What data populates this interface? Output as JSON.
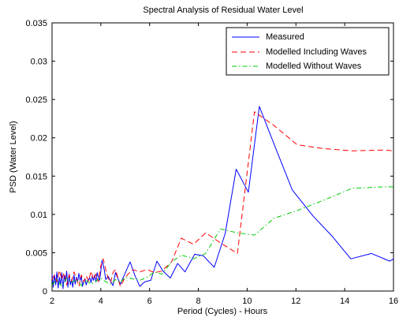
{
  "chart_data": {
    "type": "line",
    "title": "Spectral Analysis of Residual Water Level",
    "xlabel": "Period (Cycles) - Hours",
    "ylabel": "PSD (Water Level)",
    "xlim": [
      2,
      16
    ],
    "ylim": [
      0,
      0.035
    ],
    "xticks": [
      2,
      4,
      6,
      8,
      10,
      12,
      14,
      16
    ],
    "yticks": [
      0,
      0.005,
      0.01,
      0.015,
      0.02,
      0.025,
      0.03,
      0.035
    ],
    "xtick_labels": [
      "2",
      "4",
      "6",
      "8",
      "10",
      "12",
      "14",
      "16"
    ],
    "ytick_labels": [
      "0",
      "0.005",
      "0.01",
      "0.015",
      "0.02",
      "0.025",
      "0.03",
      "0.035"
    ],
    "grid": false,
    "legend_position": "top-right",
    "series": [
      {
        "name": "Measured",
        "color": "#0000ff",
        "dash": "solid",
        "x": [
          2.0,
          2.05,
          2.1,
          2.15,
          2.2,
          2.25,
          2.3,
          2.35,
          2.4,
          2.45,
          2.5,
          2.55,
          2.6,
          2.65,
          2.7,
          2.75,
          2.8,
          2.85,
          2.9,
          2.95,
          3.0,
          3.05,
          3.1,
          3.15,
          3.2,
          3.25,
          3.3,
          3.35,
          3.4,
          3.45,
          3.5,
          3.55,
          3.6,
          3.65,
          3.7,
          3.75,
          3.8,
          3.85,
          3.9,
          3.95,
          4.0,
          4.05,
          4.1,
          4.15,
          4.2,
          4.3,
          4.4,
          4.5,
          4.6,
          4.8,
          4.95,
          5.2,
          5.4,
          5.6,
          5.8,
          6.05,
          6.3,
          6.55,
          6.85,
          7.15,
          7.45,
          7.85,
          8.2,
          8.65,
          9.1,
          9.55,
          10.05,
          10.5,
          11.2,
          11.85,
          12.7,
          13.5,
          14.25,
          15.1,
          15.85,
          16.0
        ],
        "y": [
          0.0022,
          0.0005,
          0.0021,
          0.0008,
          0.0025,
          0.0004,
          0.0018,
          0.0008,
          0.0024,
          0.0003,
          0.002,
          0.0012,
          0.0026,
          0.0005,
          0.0022,
          0.0008,
          0.0015,
          0.0005,
          0.0021,
          0.0009,
          0.0018,
          0.0012,
          0.0023,
          0.0014,
          0.0019,
          0.0006,
          0.0013,
          0.0016,
          0.0008,
          0.0013,
          0.0015,
          0.0017,
          0.0011,
          0.0019,
          0.0014,
          0.0021,
          0.0012,
          0.0024,
          0.0018,
          0.0014,
          0.0026,
          0.004,
          0.0034,
          0.0026,
          0.0015,
          0.0019,
          0.0013,
          0.0007,
          0.0024,
          0.0009,
          0.002,
          0.0038,
          0.002,
          0.0006,
          0.0012,
          0.0014,
          0.0039,
          0.0026,
          0.0017,
          0.0036,
          0.0025,
          0.0048,
          0.0046,
          0.0031,
          0.0075,
          0.0159,
          0.0129,
          0.0241,
          0.0184,
          0.0132,
          0.0098,
          0.0071,
          0.0042,
          0.0049,
          0.0039,
          0.0042
        ],
        "x_exact": true
      },
      {
        "name": "Modelled Including Waves",
        "color": "#ff0000",
        "dash": "dashed",
        "x": [
          2.0,
          2.1,
          2.2,
          2.3,
          2.4,
          2.5,
          2.6,
          2.7,
          2.8,
          2.9,
          3.0,
          3.1,
          3.2,
          3.3,
          3.4,
          3.5,
          3.6,
          3.7,
          3.8,
          3.9,
          4.0,
          4.1,
          4.2,
          4.3,
          4.4,
          4.5,
          4.6,
          4.8,
          5.0,
          5.3,
          5.6,
          5.9,
          6.2,
          6.5,
          6.9,
          7.3,
          7.8,
          8.3,
          8.9,
          9.6,
          10.3,
          11.1,
          12.05,
          13.1,
          14.3,
          15.6,
          16.0
        ],
        "y": [
          0.0015,
          0.0021,
          0.0012,
          0.0027,
          0.0015,
          0.0024,
          0.0008,
          0.0021,
          0.0013,
          0.0025,
          0.0017,
          0.0006,
          0.0021,
          0.0012,
          0.002,
          0.0013,
          0.0026,
          0.0015,
          0.0022,
          0.0012,
          0.0033,
          0.0042,
          0.0028,
          0.0017,
          0.0011,
          0.0024,
          0.0028,
          0.0006,
          0.0018,
          0.0028,
          0.0025,
          0.0028,
          0.0024,
          0.0026,
          0.0038,
          0.0069,
          0.0061,
          0.0076,
          0.0063,
          0.0049,
          0.0234,
          0.0216,
          0.0191,
          0.0186,
          0.0183,
          0.0184,
          0.0183
        ],
        "x_exact": false
      },
      {
        "name": "Modelled Without Waves",
        "color": "#00cc00",
        "dash": "dashdot",
        "x": [
          2.0,
          2.2,
          2.4,
          2.6,
          2.8,
          3.0,
          3.2,
          3.4,
          3.6,
          3.8,
          4.0,
          4.2,
          4.4,
          4.6,
          4.8,
          5.0,
          5.3,
          5.6,
          5.9,
          6.2,
          6.5,
          6.9,
          7.3,
          7.8,
          8.3,
          8.9,
          9.6,
          10.3,
          11.1,
          12.05,
          13.1,
          14.3,
          15.6,
          16.0
        ],
        "y": [
          0.0008,
          0.0015,
          0.0006,
          0.0017,
          0.0011,
          0.0015,
          0.0007,
          0.0014,
          0.0009,
          0.0013,
          0.0017,
          0.0012,
          0.0009,
          0.0015,
          0.0011,
          0.0018,
          0.0016,
          0.0014,
          0.0018,
          0.0025,
          0.0022,
          0.0038,
          0.0047,
          0.0042,
          0.0049,
          0.0081,
          0.0076,
          0.0073,
          0.0095,
          0.0105,
          0.0118,
          0.0134,
          0.0136,
          0.0136
        ],
        "x_exact": false
      }
    ]
  }
}
